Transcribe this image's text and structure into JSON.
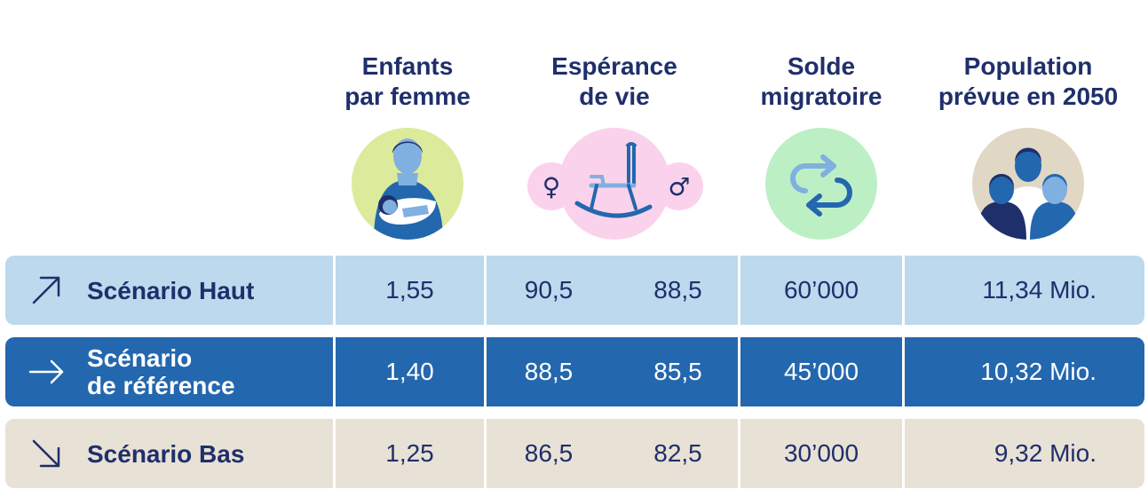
{
  "headers": {
    "children": [
      "Enfants",
      "par femme"
    ],
    "life": [
      "Espérance",
      "de vie"
    ],
    "migration": [
      "Solde",
      "migratoire"
    ],
    "population": [
      "Population",
      "prévue en 2050"
    ]
  },
  "icons": {
    "children": "mother-child-icon",
    "life": "rocking-chair-icon",
    "female": "female-symbol-icon",
    "male": "male-symbol-icon",
    "migration": "loop-arrows-icon",
    "population": "people-group-icon"
  },
  "symbols": {
    "female": "♀",
    "male": "♂"
  },
  "rows": [
    {
      "label_lines": [
        "Scénario Haut"
      ],
      "arrow_icon": "arrow-up-right-icon",
      "children": "1,55",
      "life_female": "90,5",
      "life_male": "88,5",
      "migration": "60’000",
      "population": "11,34 Mio."
    },
    {
      "label_lines": [
        "Scénario",
        "de référence"
      ],
      "arrow_icon": "arrow-right-icon",
      "children": "1,40",
      "life_female": "88,5",
      "life_male": "85,5",
      "migration": "45’000",
      "population": "10,32 Mio."
    },
    {
      "label_lines": [
        "Scénario Bas"
      ],
      "arrow_icon": "arrow-down-right-icon",
      "children": "1,25",
      "life_female": "86,5",
      "life_male": "82,5",
      "migration": "30’000",
      "population": "9,32 Mio."
    }
  ],
  "colors": {
    "navy": "#1f2f6b",
    "row_high": "#bcd9ee",
    "row_reference": "#2367ae",
    "row_low": "#e8e1d5",
    "icon_children_bg": "#dcea9c",
    "icon_life_bg": "#fad2ec",
    "icon_migration_bg": "#bdefc5",
    "icon_population_bg": "#e1d7c5"
  }
}
